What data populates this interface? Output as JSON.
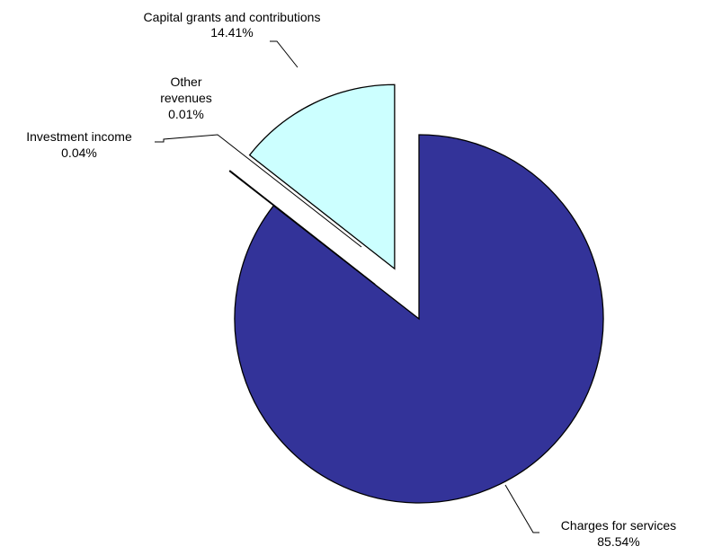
{
  "chart_data": {
    "type": "pie",
    "title": "",
    "slices": [
      {
        "label": "Charges for services",
        "value": 85.54,
        "display": "85.54%",
        "color": "#333399",
        "exploded": false
      },
      {
        "label": "Investment income",
        "value": 0.04,
        "display": "0.04%",
        "color": "#ffffff",
        "exploded": true
      },
      {
        "label": "Other revenues",
        "value": 0.01,
        "display": "0.01%",
        "color": "#ffffff",
        "exploded": true
      },
      {
        "label": "Capital grants and contributions",
        "value": 14.41,
        "display": "14.41%",
        "color": "#ccffff",
        "exploded": true
      }
    ],
    "legend": "none"
  }
}
